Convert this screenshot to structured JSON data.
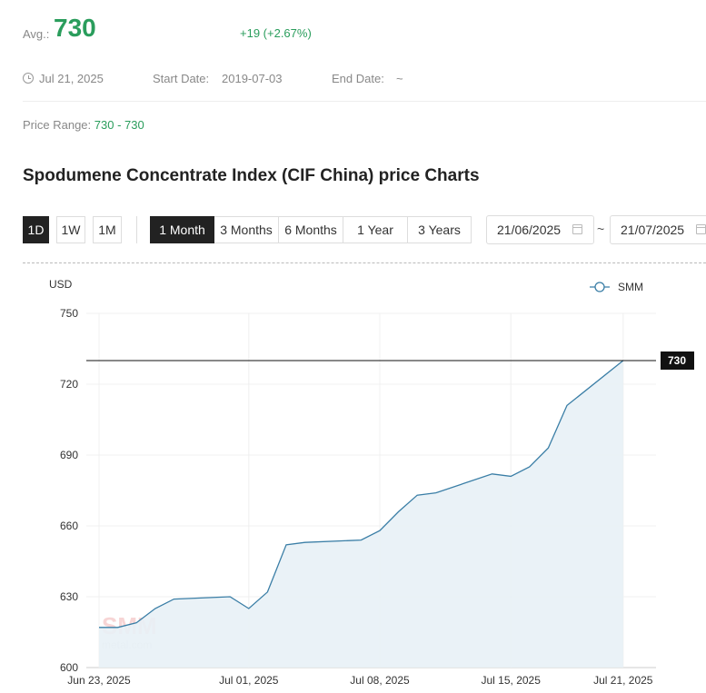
{
  "summary": {
    "avg_label": "Avg.:",
    "avg_value": "730",
    "change": "+19 (+2.67%)",
    "date": "Jul 21, 2025",
    "start_date_label": "Start Date:",
    "start_date": "2019-07-03",
    "end_date_label": "End Date:",
    "end_date": "~",
    "price_range_label": "Price Range:",
    "price_range": "730 - 730"
  },
  "title": "Spodumene Concentrate Index (CIF China) price Charts",
  "interval_buttons": [
    "1D",
    "1W",
    "1M"
  ],
  "range_tabs": [
    "1 Month",
    "3 Months",
    "6 Months",
    "1 Year",
    "3 Years"
  ],
  "active_range": "1 Month",
  "date_from": "21/06/2025",
  "date_to": "21/07/2025",
  "date_separator": "~",
  "colors": {
    "accent_green": "#2a9d5c",
    "line": "#3a7ea6",
    "area": "#e8f1f6"
  },
  "chart_data": {
    "type": "area",
    "ylabel": "USD",
    "ylim": [
      600,
      750
    ],
    "yticks": [
      600,
      630,
      660,
      690,
      720,
      750
    ],
    "xtick_labels": [
      "Jun 23, 2025",
      "Jul 01, 2025",
      "Jul 08, 2025",
      "Jul 15, 2025",
      "Jul 21, 2025"
    ],
    "legend": "SMM",
    "legend_position": "top-right",
    "reference_line": 730,
    "reference_label": "730",
    "watermark": "SMM metal.com",
    "series": [
      {
        "name": "SMM",
        "x": [
          "Jun 23, 2025",
          "Jun 24, 2025",
          "Jun 25, 2025",
          "Jun 26, 2025",
          "Jun 27, 2025",
          "Jun 30, 2025",
          "Jul 01, 2025",
          "Jul 02, 2025",
          "Jul 03, 2025",
          "Jul 04, 2025",
          "Jul 07, 2025",
          "Jul 08, 2025",
          "Jul 09, 2025",
          "Jul 10, 2025",
          "Jul 11, 2025",
          "Jul 14, 2025",
          "Jul 15, 2025",
          "Jul 16, 2025",
          "Jul 17, 2025",
          "Jul 18, 2025",
          "Jul 21, 2025"
        ],
        "values": [
          617,
          617,
          619,
          625,
          629,
          630,
          625,
          632,
          652,
          653,
          654,
          658,
          666,
          673,
          674,
          682,
          681,
          685,
          693,
          711,
          730
        ]
      }
    ]
  }
}
